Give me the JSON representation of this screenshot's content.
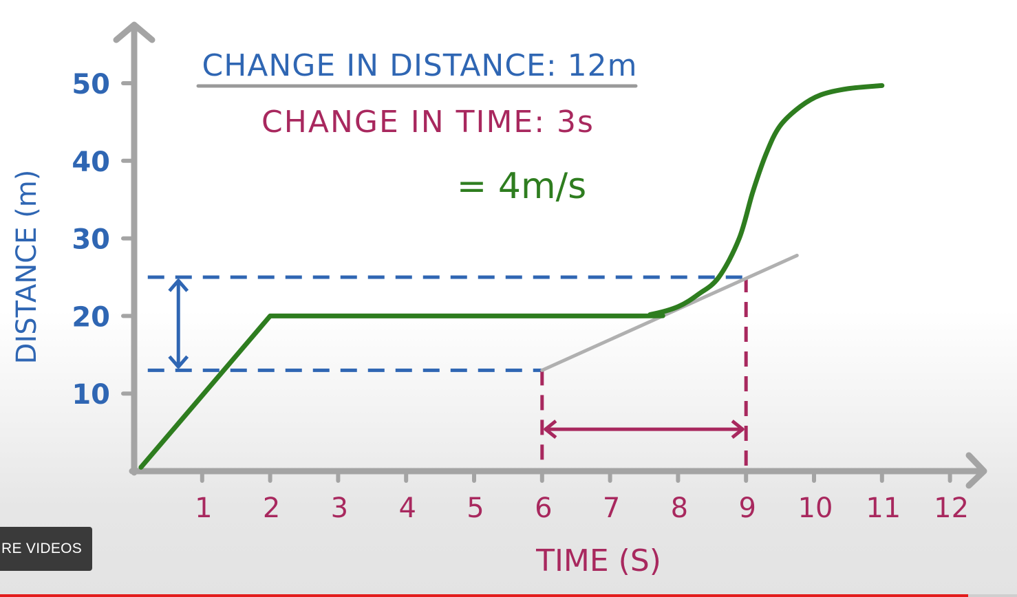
{
  "overlay": {
    "more_videos_label": "RE VIDEOS"
  },
  "player": {
    "progress_fraction": 0.952,
    "progress_color": "#e31d1d"
  },
  "colors": {
    "axis": "#a4a4a4",
    "curve": "#2e7d1f",
    "blue": "#2f66b3",
    "magenta": "#a8285e",
    "tangent": "#b0b0b0"
  },
  "chart_data": {
    "type": "line",
    "title_lines": [
      {
        "text": "CHANGE IN DISTANCE: 12m",
        "color": "blue"
      },
      {
        "text": "CHANGE IN TIME: 3s",
        "color": "magenta"
      },
      {
        "text": "= 4m/s",
        "color": "curve"
      }
    ],
    "xlabel": "TIME (S)",
    "ylabel": "DISTANCE (m)",
    "xlim": [
      0,
      12.5
    ],
    "ylim": [
      0,
      50
    ],
    "x_ticks": [
      1,
      2,
      3,
      4,
      5,
      6,
      7,
      8,
      9,
      10,
      11,
      12
    ],
    "x_tick_labels": [
      "1",
      "2",
      "3",
      "4",
      "5",
      "6",
      "7",
      "8",
      "9",
      "10",
      "11",
      "12"
    ],
    "y_ticks": [
      10,
      20,
      30,
      40,
      50
    ],
    "y_tick_labels": [
      "10",
      "20",
      "30",
      "40",
      "50"
    ],
    "series": [
      {
        "x": [
          0.1,
          2.0,
          7.3,
          7.6,
          8.0,
          8.3,
          8.6,
          8.9,
          9.1,
          9.3,
          9.5,
          9.8,
          10.1,
          10.5,
          11.0
        ],
        "y": [
          0.5,
          20.0,
          20.0,
          20.2,
          21.2,
          22.8,
          25.0,
          30.0,
          36.0,
          41.0,
          44.5,
          47.0,
          48.5,
          49.3,
          49.7
        ]
      }
    ],
    "tangent": {
      "x": [
        6.0,
        9.75
      ],
      "y": [
        13.0,
        27.8
      ]
    },
    "delta_distance": {
      "x": 0.65,
      "y_from": 13,
      "y_to": 25,
      "dashed_guides_from_x": 0.2,
      "dashed_guides_to_x": [
        6.0,
        9.0
      ]
    },
    "delta_time": {
      "y": 5.4,
      "x_from": 6,
      "x_to": 9,
      "dashed_verticals_from_y": [
        13,
        25
      ]
    },
    "grid": false
  }
}
